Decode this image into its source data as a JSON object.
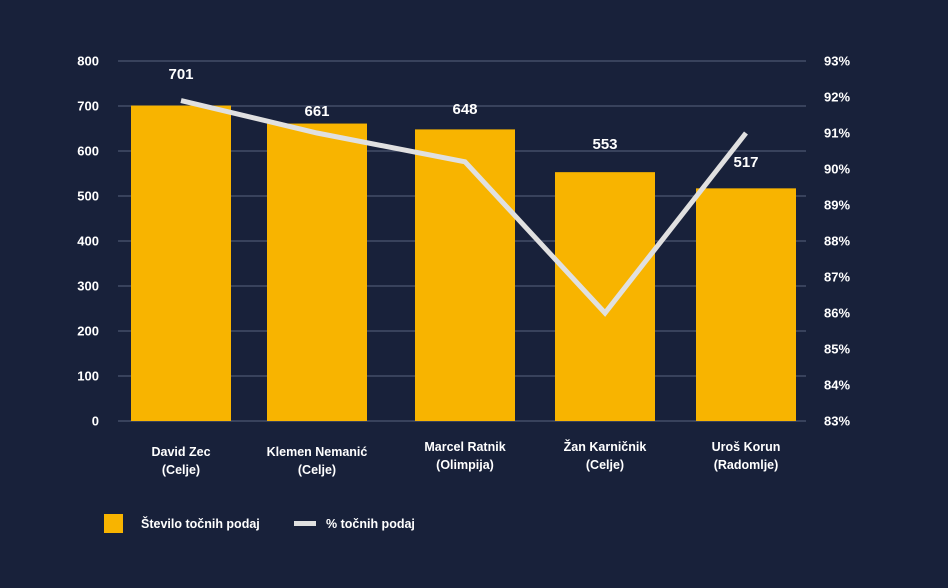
{
  "chart_data": {
    "type": "bar",
    "categories": [
      [
        "David Zec",
        "(Celje)"
      ],
      [
        "Klemen Nemanić",
        "(Celje)"
      ],
      [
        "Marcel Ratnik",
        "(Olimpija)"
      ],
      [
        "Žan Karničnik",
        "(Celje)"
      ],
      [
        "Uroš Korun",
        "(Radomlje)"
      ]
    ],
    "series": [
      {
        "name": "Število točnih podaj",
        "type": "bar",
        "axis": "left",
        "values": [
          701,
          661,
          648,
          553,
          517
        ],
        "color": "#f8b400"
      },
      {
        "name": "% točnih podaj",
        "type": "line",
        "axis": "right",
        "values": [
          91.9,
          91.0,
          90.2,
          86.0,
          91.0
        ],
        "color": "#e0e0e0"
      }
    ],
    "y_left": {
      "min": 0,
      "max": 800,
      "ticks": [
        0,
        100,
        200,
        300,
        400,
        500,
        600,
        700,
        800
      ]
    },
    "y_right": {
      "min": 83,
      "max": 93,
      "ticks": [
        "83%",
        "84%",
        "85%",
        "86%",
        "87%",
        "88%",
        "89%",
        "90%",
        "91%",
        "92%",
        "93%"
      ]
    },
    "data_labels": [
      "701",
      "661",
      "648",
      "553",
      "517"
    ],
    "grid": true,
    "legend_position": "bottom-left",
    "title": "",
    "xlabel": "",
    "ylabel": ""
  },
  "colors": {
    "background": "#18213a",
    "grid": "#4c5670",
    "bar": "#f8b400",
    "line": "#e0e0e0",
    "text": "#ffffff"
  }
}
